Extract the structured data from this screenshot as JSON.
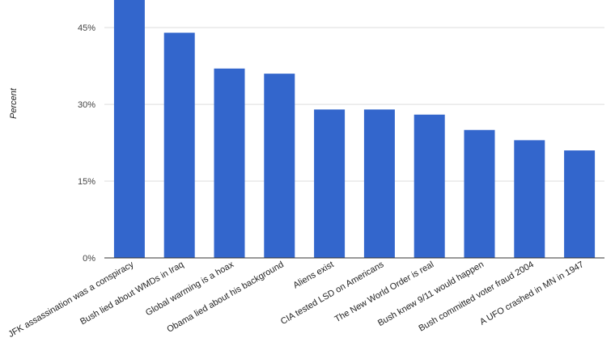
{
  "chart_data": {
    "type": "bar",
    "ylabel": "Percent",
    "xlabel": "",
    "ylim": [
      0,
      51
    ],
    "yticks": [
      {
        "value": 0,
        "label": "0%"
      },
      {
        "value": 15,
        "label": "15%"
      },
      {
        "value": 30,
        "label": "30%"
      },
      {
        "value": 45,
        "label": "45%"
      }
    ],
    "categories": [
      "JFK assassination was a conspiracy",
      "Bush lied about WMDs in Iraq",
      "Global warming is a hoax",
      "Obama lied about his background",
      "Aliens exist",
      "CIA tested LSD on Americans",
      "The New World Order is real",
      "Bush knew 9/11 would happen",
      "Bush committed voter fraud 2004",
      "A UFO crashed in MN in 1947"
    ],
    "values": [
      51,
      44,
      37,
      36,
      29,
      29,
      28,
      25,
      23,
      21
    ],
    "bar_color": "#3366cc",
    "grid": true,
    "legend": "none"
  }
}
